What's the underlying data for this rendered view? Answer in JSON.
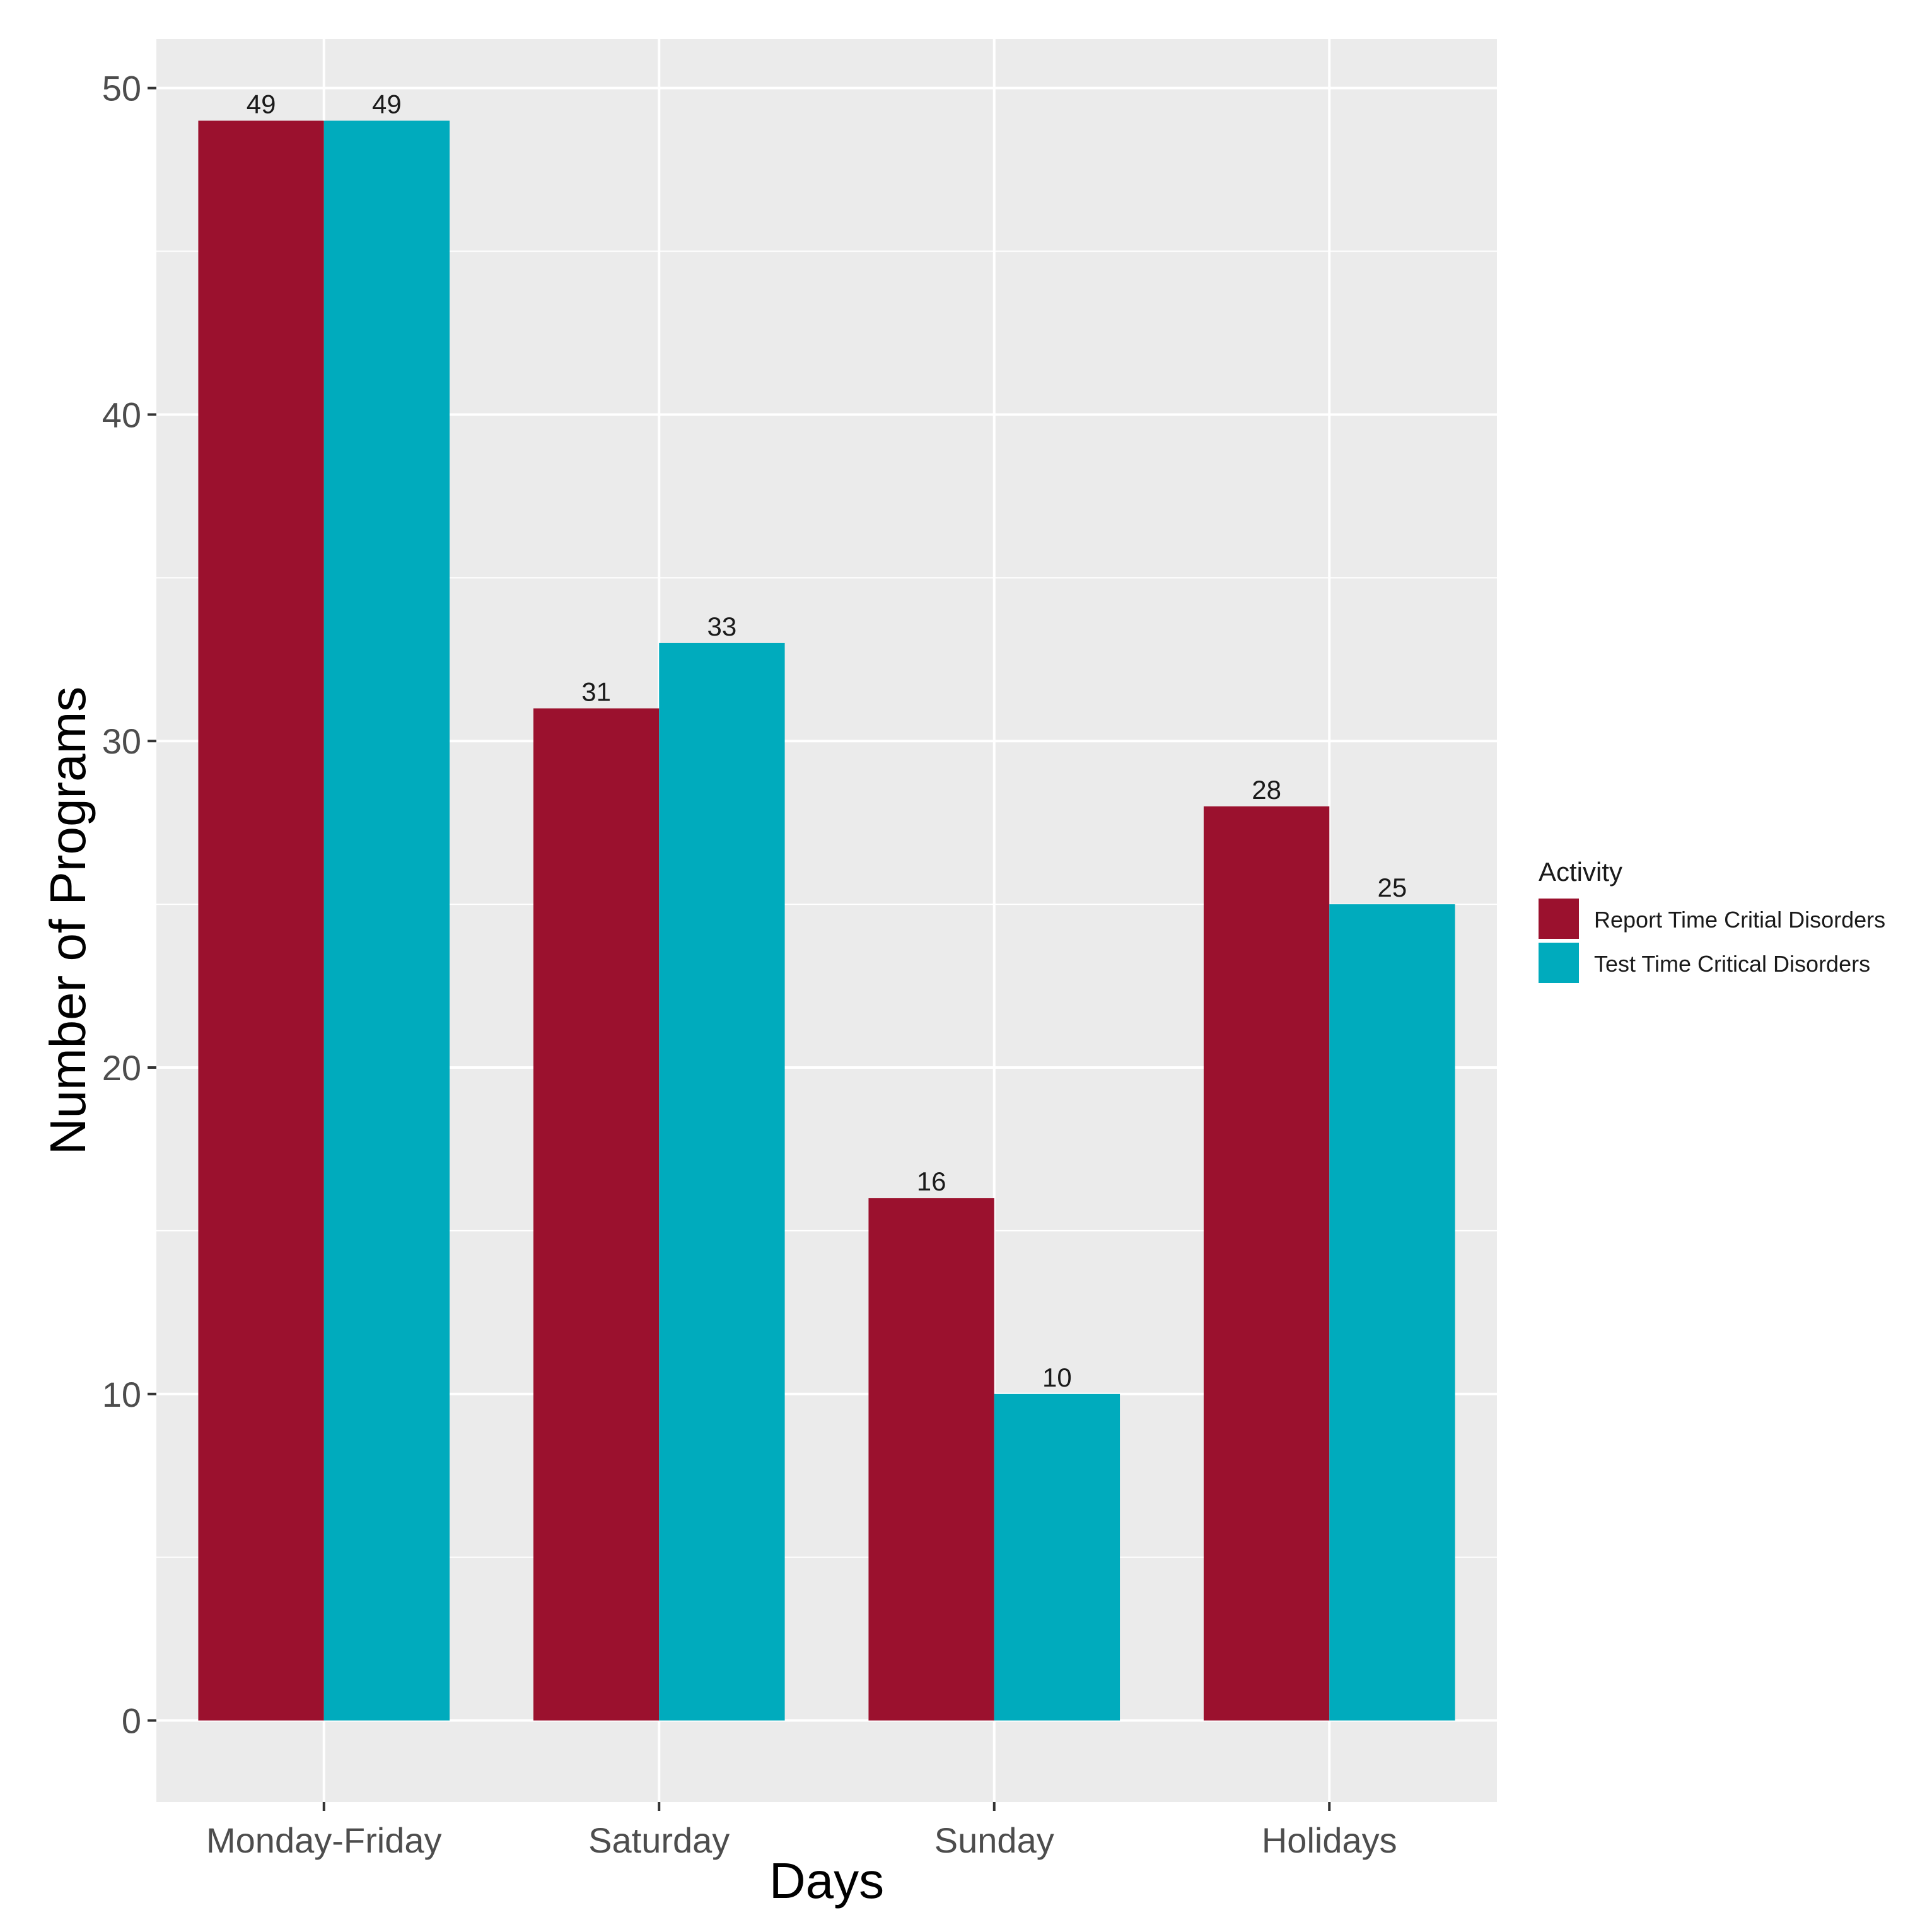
{
  "chart_data": {
    "type": "bar",
    "title": "",
    "xlabel": "Days",
    "ylabel": "Number of Programs",
    "categories": [
      "Monday-Friday",
      "Saturday",
      "Sunday",
      "Holidays"
    ],
    "series": [
      {
        "name": "Report Time Critial Disorders",
        "color": "#9b112e",
        "values": [
          49,
          31,
          16,
          28
        ]
      },
      {
        "name": "Test Time Critical Disorders",
        "color": "#00abbd",
        "values": [
          49,
          33,
          10,
          25
        ]
      }
    ],
    "ylim": [
      -2.5,
      51.5
    ],
    "yticks": [
      0,
      10,
      20,
      30,
      40,
      50
    ],
    "ytick_labels": [
      "0",
      "10",
      "20",
      "30",
      "40",
      "50"
    ],
    "grid": true,
    "legend": {
      "title": "Activity",
      "position": "right"
    },
    "colors": {
      "panel": "#ebebeb",
      "grid": "#ffffff",
      "tick": "#333333"
    }
  }
}
